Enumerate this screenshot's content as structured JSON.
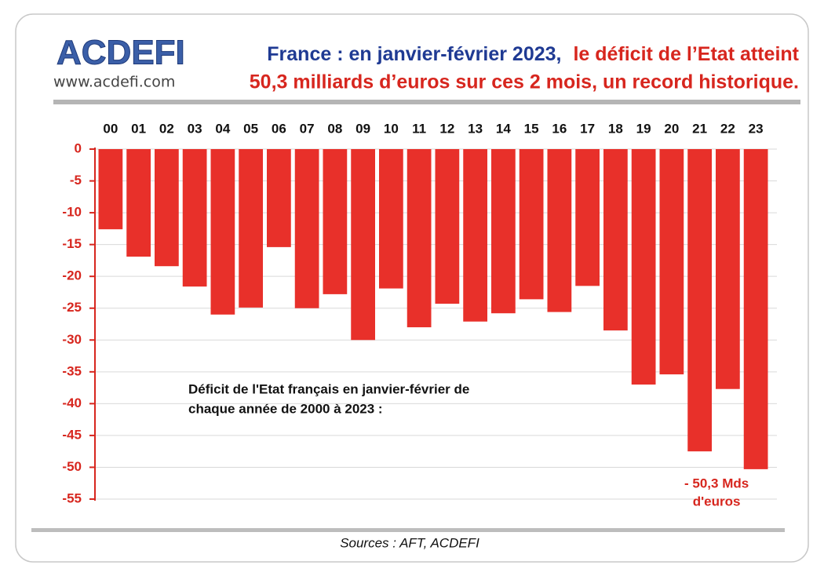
{
  "chart_data": {
    "type": "bar",
    "logo": "ACDEFI",
    "logo_url": "www.acdefi.com",
    "title": [
      "France : en janvier-février 2023,",
      "le déficit de l’Etat atteint",
      "50,3 milliards d’euros sur ces 2 mois, un record historique."
    ],
    "title_colors": [
      "#1f3a93",
      "#d7261e",
      "#d7261e"
    ],
    "categories": [
      "00",
      "01",
      "02",
      "03",
      "04",
      "05",
      "06",
      "07",
      "08",
      "09",
      "10",
      "11",
      "12",
      "13",
      "14",
      "15",
      "16",
      "17",
      "18",
      "19",
      "20",
      "21",
      "22",
      "23"
    ],
    "values": [
      -12.6,
      -16.9,
      -18.4,
      -21.6,
      -26.0,
      -24.9,
      -15.4,
      -25.0,
      -22.8,
      -30.0,
      -21.9,
      -28.0,
      -24.3,
      -27.1,
      -25.8,
      -23.6,
      -25.6,
      -21.5,
      -28.5,
      -37.0,
      -35.4,
      -47.5,
      -37.7,
      -50.3
    ],
    "color": "#e8302a",
    "ylim": [
      0,
      -55
    ],
    "yticks": [
      0,
      -5,
      -10,
      -15,
      -20,
      -25,
      -30,
      -35,
      -40,
      -45,
      -50,
      -55
    ],
    "grid": true,
    "annotation": [
      "Déficit de l'Etat français en janvier-février de",
      "chaque année de 2000 à 2023 :"
    ],
    "bar_annotation": [
      "- 50,3 Mds",
      "d'euros"
    ],
    "source": "Sources : AFT, ACDEFI"
  }
}
